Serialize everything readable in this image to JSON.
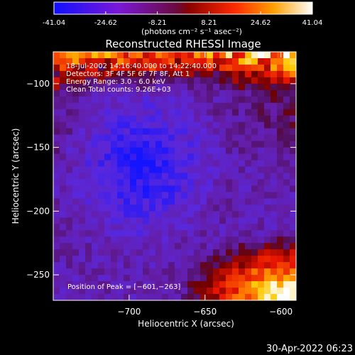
{
  "chart_data": {
    "type": "heatmap",
    "title": "Reconstructed RHESSI Image",
    "colorbar": {
      "ticks": [
        "-41.04",
        "-24.62",
        "-8.21",
        "8.21",
        "24.62",
        "41.04"
      ],
      "unit_label": "(photons cm⁻² s⁻¹ asec⁻²)",
      "range": [
        -41.04,
        41.04
      ],
      "colormap": "blue-purple-red-orange-yellow-white"
    },
    "xlabel": "Heliocentric X (arcsec)",
    "ylabel": "Heliocentric Y (arcsec)",
    "xlim": [
      -750,
      -590
    ],
    "ylim": [
      -270,
      -75
    ],
    "xticks": [
      -700,
      -650,
      -600
    ],
    "yticks": [
      -100,
      -150,
      -200,
      -250
    ],
    "xtick_labels": [
      "−700",
      "−650",
      "−600"
    ],
    "ytick_labels": [
      "−100",
      "−150",
      "−200",
      "−250"
    ],
    "annotations": [
      "18-Jul-2002 14:16:40.000 to 14:22:40.000",
      "Detectors: 3F 4F 5F 6F 7F 8F, Att 1",
      "Energy Range: 3.0 - 6.0 keV",
      "Clean     Total counts: 9.26E+03"
    ],
    "peak_label": "Position of Peak = [−601,−263]",
    "peak_position": [
      -601,
      -263
    ],
    "grid": false
  },
  "timestamp": "30-Apr-2022 06:23"
}
